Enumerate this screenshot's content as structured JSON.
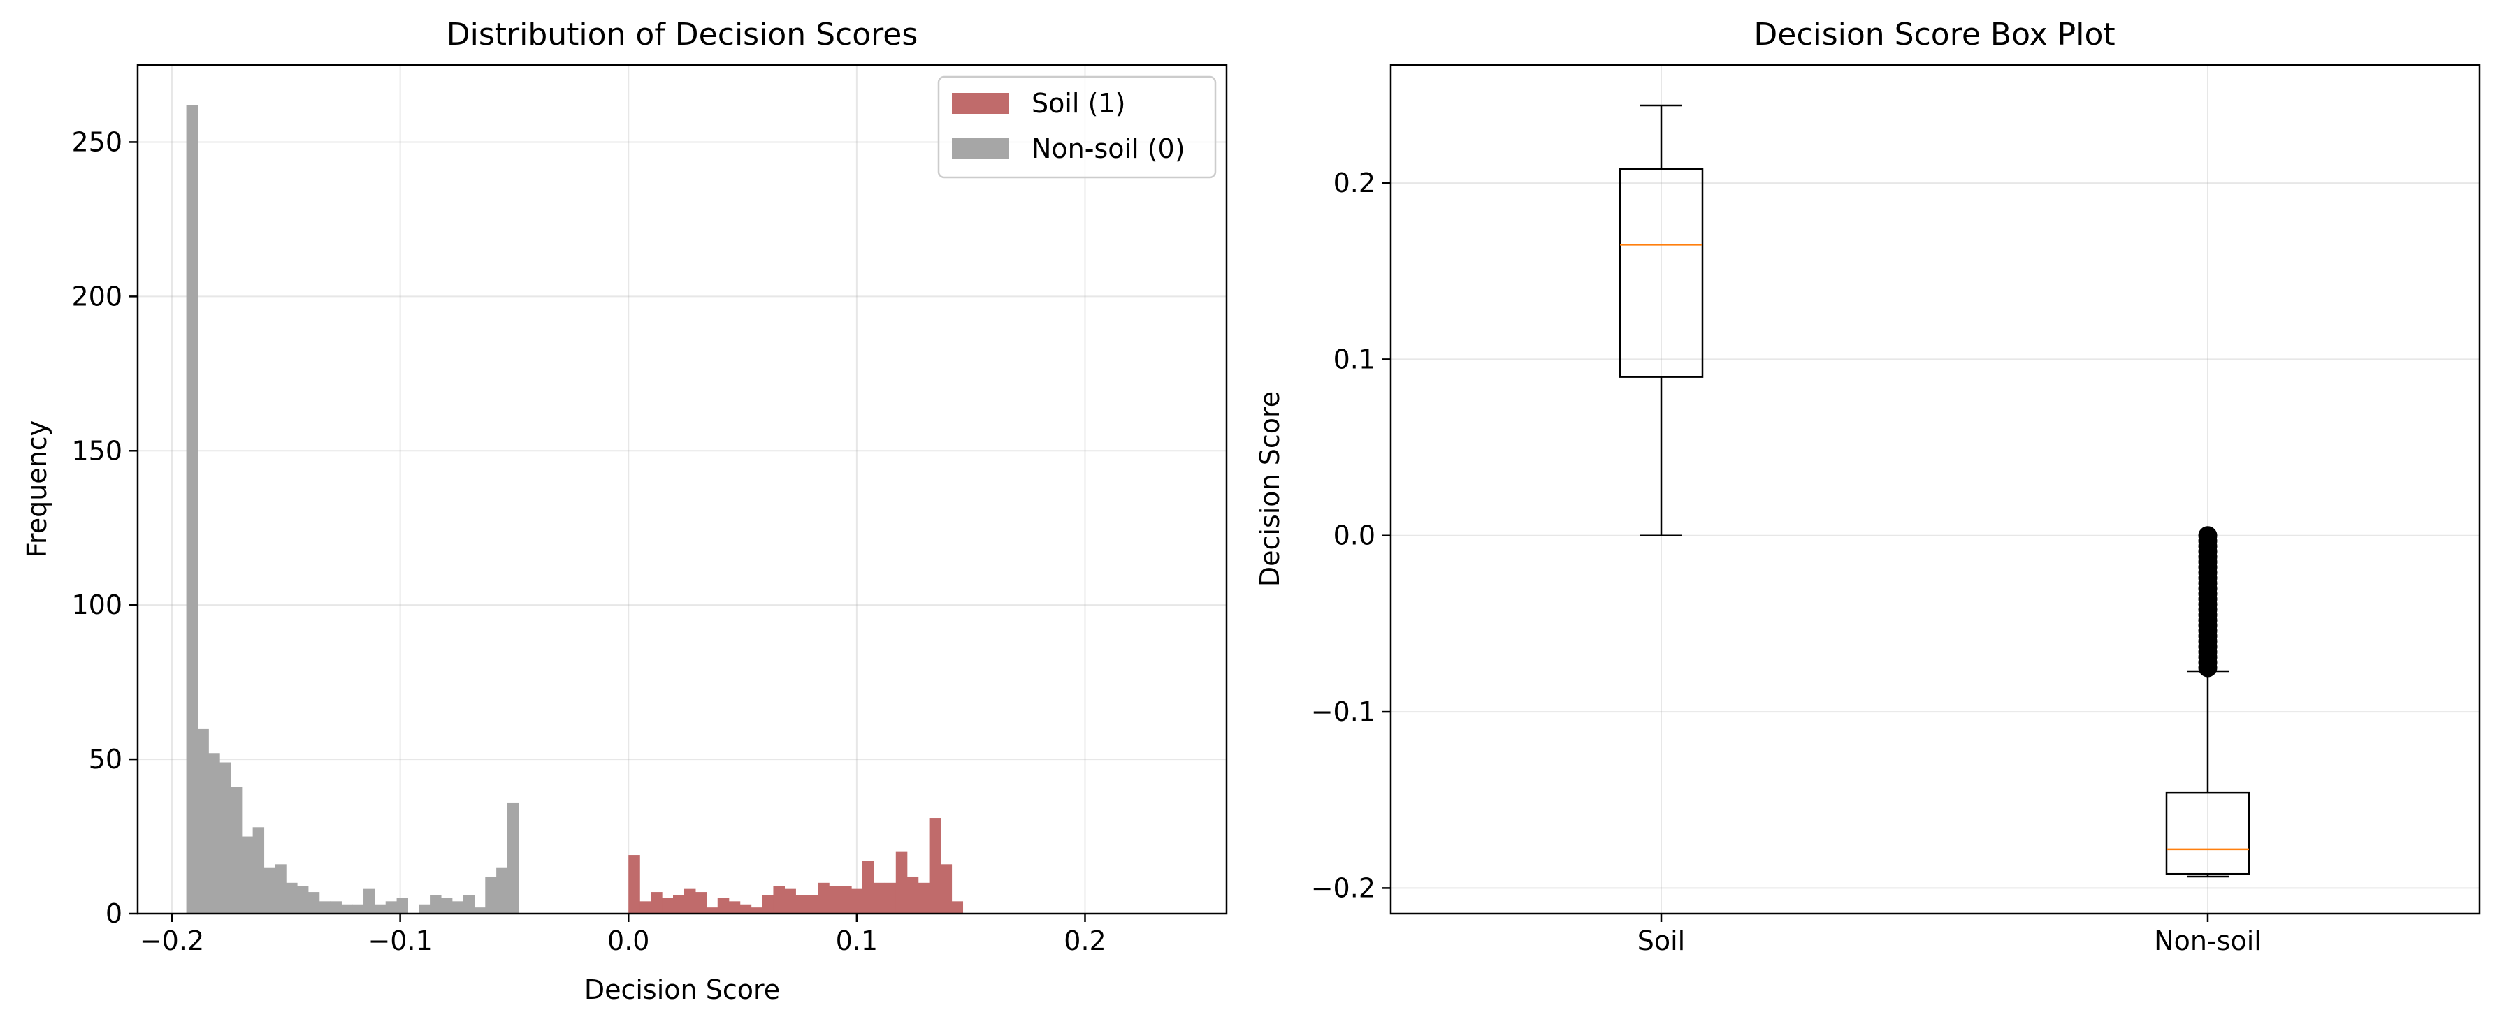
{
  "chart_data": [
    {
      "type": "histogram",
      "title": "Distribution of Decision Scores",
      "xlabel": "Decision Score",
      "ylabel": "Frequency",
      "xlim": [
        -0.215,
        0.262
      ],
      "ylim": [
        0,
        275
      ],
      "xticks": [
        -0.2,
        -0.1,
        0.0,
        0.1,
        0.2
      ],
      "xtick_labels": [
        "−0.2",
        "−0.1",
        "0.0",
        "0.1",
        "0.2"
      ],
      "yticks": [
        0,
        50,
        100,
        150,
        200,
        250
      ],
      "ytick_labels": [
        "0",
        "50",
        "100",
        "150",
        "200",
        "250"
      ],
      "grid": true,
      "legend_position": "top-right",
      "series": [
        {
          "name": "Non-soil (0)",
          "color": "#a6a6a6",
          "bin_start": -0.1937,
          "bin_width": 0.00485,
          "counts": [
            262,
            60,
            52,
            49,
            41,
            25,
            28,
            15,
            16,
            10,
            9,
            7,
            4,
            4,
            3,
            3,
            8,
            3,
            4,
            5,
            0,
            3,
            6,
            5,
            4,
            6,
            2,
            12,
            15,
            36
          ]
        },
        {
          "name": "Soil (1)",
          "color": "#c06b6b",
          "bin_start": 0.0,
          "bin_width": 0.00488,
          "counts": [
            19,
            4,
            7,
            5,
            6,
            8,
            7,
            2,
            5,
            4,
            3,
            2,
            6,
            9,
            8,
            6,
            6,
            10,
            9,
            9,
            8,
            17,
            10,
            10,
            20,
            12,
            10,
            31,
            16,
            4
          ]
        }
      ]
    },
    {
      "type": "box",
      "title": "Decision Score Box Plot",
      "xlabel": "",
      "ylabel": "Decision Score",
      "ylim": [
        -0.2145,
        0.267
      ],
      "yticks": [
        -0.2,
        -0.1,
        0.0,
        0.1,
        0.2
      ],
      "ytick_labels": [
        "−0.2",
        "−0.1",
        "0.0",
        "0.1",
        "0.2"
      ],
      "categories": [
        "Soil",
        "Non-soil"
      ],
      "grid": true,
      "median_color": "#ff7f0e",
      "boxes": [
        {
          "label": "Soil",
          "whisker_low": 0.0,
          "q1": 0.09,
          "median": 0.165,
          "q3": 0.208,
          "whisker_high": 0.244,
          "outliers": []
        },
        {
          "label": "Non-soil",
          "whisker_low": -0.1935,
          "q1": -0.192,
          "median": -0.178,
          "q3": -0.146,
          "whisker_high": -0.077,
          "outliers": [
            -0.075,
            -0.072,
            -0.069,
            -0.066,
            -0.063,
            -0.06,
            -0.057,
            -0.054,
            -0.051,
            -0.048,
            -0.045,
            -0.042,
            -0.039,
            -0.036,
            -0.033,
            -0.03,
            -0.027,
            -0.024,
            -0.021,
            -0.018,
            -0.015,
            -0.012,
            -0.009,
            -0.006,
            -0.003,
            0.0
          ]
        }
      ]
    }
  ]
}
